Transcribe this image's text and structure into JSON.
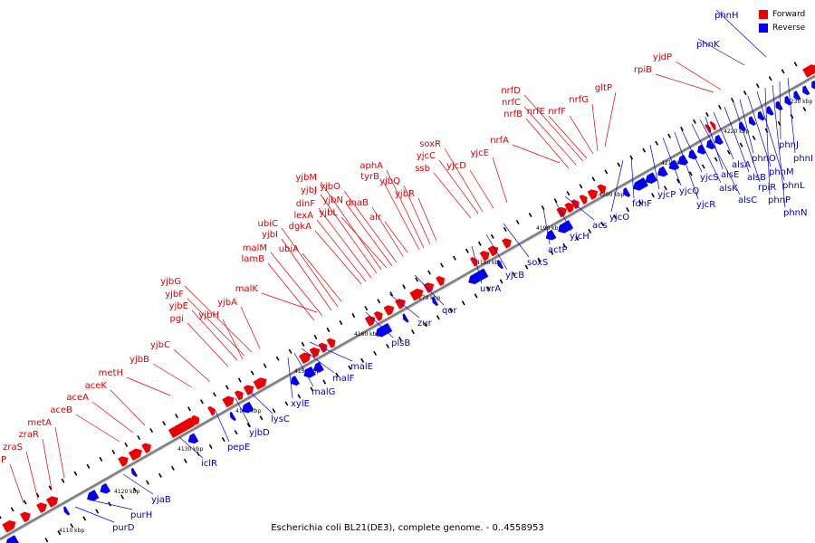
{
  "caption": "Escherichia coli BL21(DE3), complete genome. - 0..4558953",
  "legend": {
    "forward_label": "Forward",
    "reverse_label": "Reverse",
    "forward_color": "#ee0000",
    "reverse_color": "#0000ee"
  },
  "colors": {
    "forward": "#ee0000",
    "reverse": "#0000ee",
    "backbone": "#808080",
    "tick": "#000000"
  },
  "scale_labels": [
    "4110 kbp",
    "4120 kbp",
    "4130 kbp",
    "4140 kbp",
    "4150 kbp",
    "4160 kbp",
    "4170 kbp",
    "4180 kbp",
    "4190 kbp",
    "4200 kbp",
    "4210 kbp",
    "4220 kbp",
    "4230 kbp"
  ],
  "genes": [
    {
      "name": "zraP",
      "strand": "forward"
    },
    {
      "name": "zraS",
      "strand": "forward"
    },
    {
      "name": "zraR",
      "strand": "forward"
    },
    {
      "name": "metA",
      "strand": "forward"
    },
    {
      "name": "aceB",
      "strand": "forward"
    },
    {
      "name": "aceA",
      "strand": "forward"
    },
    {
      "name": "aceK",
      "strand": "forward"
    },
    {
      "name": "metH",
      "strand": "forward"
    },
    {
      "name": "yjbB",
      "strand": "forward"
    },
    {
      "name": "yjbC",
      "strand": "forward"
    },
    {
      "name": "pgi",
      "strand": "forward"
    },
    {
      "name": "yjbE",
      "strand": "forward"
    },
    {
      "name": "yjbF",
      "strand": "forward"
    },
    {
      "name": "yjbG",
      "strand": "forward"
    },
    {
      "name": "yjbH",
      "strand": "forward"
    },
    {
      "name": "yjbA",
      "strand": "forward"
    },
    {
      "name": "malK",
      "strand": "forward"
    },
    {
      "name": "lamB",
      "strand": "forward"
    },
    {
      "name": "malM",
      "strand": "forward"
    },
    {
      "name": "yjbI",
      "strand": "forward"
    },
    {
      "name": "ubiC",
      "strand": "forward"
    },
    {
      "name": "ubiA",
      "strand": "forward"
    },
    {
      "name": "dgkA",
      "strand": "forward"
    },
    {
      "name": "lexA",
      "strand": "forward"
    },
    {
      "name": "dinF",
      "strand": "forward"
    },
    {
      "name": "yjbJ",
      "strand": "forward"
    },
    {
      "name": "yjbM",
      "strand": "forward"
    },
    {
      "name": "yjbL",
      "strand": "forward"
    },
    {
      "name": "yjbN",
      "strand": "forward"
    },
    {
      "name": "yjbO",
      "strand": "forward"
    },
    {
      "name": "dnaB",
      "strand": "forward"
    },
    {
      "name": "alr",
      "strand": "forward"
    },
    {
      "name": "tyrB",
      "strand": "forward"
    },
    {
      "name": "aphA",
      "strand": "forward"
    },
    {
      "name": "yjbQ",
      "strand": "forward"
    },
    {
      "name": "yjbR",
      "strand": "forward"
    },
    {
      "name": "ssb",
      "strand": "forward"
    },
    {
      "name": "yjcC",
      "strand": "forward"
    },
    {
      "name": "soxR",
      "strand": "forward"
    },
    {
      "name": "yjcD",
      "strand": "forward"
    },
    {
      "name": "yjcE",
      "strand": "forward"
    },
    {
      "name": "nrfA",
      "strand": "forward"
    },
    {
      "name": "nrfB",
      "strand": "forward"
    },
    {
      "name": "nrfC",
      "strand": "forward"
    },
    {
      "name": "nrfD",
      "strand": "forward"
    },
    {
      "name": "nrfE",
      "strand": "forward"
    },
    {
      "name": "nrfF",
      "strand": "forward"
    },
    {
      "name": "nrfG",
      "strand": "forward"
    },
    {
      "name": "gltP",
      "strand": "forward"
    },
    {
      "name": "rpiB",
      "strand": "forward"
    },
    {
      "name": "yjdP",
      "strand": "forward"
    },
    {
      "name": "purD",
      "strand": "reverse"
    },
    {
      "name": "purH",
      "strand": "reverse"
    },
    {
      "name": "yjaB",
      "strand": "reverse"
    },
    {
      "name": "iclR",
      "strand": "reverse"
    },
    {
      "name": "pepE",
      "strand": "reverse"
    },
    {
      "name": "yjbD",
      "strand": "reverse"
    },
    {
      "name": "lysC",
      "strand": "reverse"
    },
    {
      "name": "xylE",
      "strand": "reverse"
    },
    {
      "name": "malG",
      "strand": "reverse"
    },
    {
      "name": "malF",
      "strand": "reverse"
    },
    {
      "name": "malE",
      "strand": "reverse"
    },
    {
      "name": "plsB",
      "strand": "reverse"
    },
    {
      "name": "zur",
      "strand": "reverse"
    },
    {
      "name": "qor",
      "strand": "reverse"
    },
    {
      "name": "uvrA",
      "strand": "reverse"
    },
    {
      "name": "yjcB",
      "strand": "reverse"
    },
    {
      "name": "soxS",
      "strand": "reverse"
    },
    {
      "name": "actP",
      "strand": "reverse"
    },
    {
      "name": "yjcH",
      "strand": "reverse"
    },
    {
      "name": "acs",
      "strand": "reverse"
    },
    {
      "name": "yjcO",
      "strand": "reverse"
    },
    {
      "name": "fdhF",
      "strand": "reverse"
    },
    {
      "name": "yjcP",
      "strand": "reverse"
    },
    {
      "name": "yjcQ",
      "strand": "reverse"
    },
    {
      "name": "yjcR",
      "strand": "reverse"
    },
    {
      "name": "yjcS",
      "strand": "reverse"
    },
    {
      "name": "alsK",
      "strand": "reverse"
    },
    {
      "name": "alsC",
      "strand": "reverse"
    },
    {
      "name": "alsE",
      "strand": "reverse"
    },
    {
      "name": "alsA",
      "strand": "reverse"
    },
    {
      "name": "alsB",
      "strand": "reverse"
    },
    {
      "name": "rpiR",
      "strand": "reverse"
    },
    {
      "name": "phnO",
      "strand": "reverse"
    },
    {
      "name": "phnM",
      "strand": "reverse"
    },
    {
      "name": "phnL",
      "strand": "reverse"
    },
    {
      "name": "phnP",
      "strand": "reverse"
    },
    {
      "name": "phnN",
      "strand": "reverse"
    },
    {
      "name": "phnJ",
      "strand": "reverse"
    },
    {
      "name": "phnI",
      "strand": "reverse"
    },
    {
      "name": "phnK",
      "strand": "reverse"
    },
    {
      "name": "phnH",
      "strand": "reverse"
    }
  ]
}
